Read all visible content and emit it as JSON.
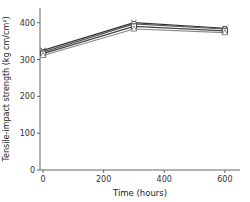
{
  "chart_data": {
    "type": "line",
    "xlabel": "Time (hours)",
    "ylabel": "Tensile-impact strength (kg cm/cm²)",
    "x": [
      0,
      300,
      600
    ],
    "series": [
      {
        "color": "#333333",
        "marker": "x",
        "line_style": "solid",
        "values": [
          325,
          400,
          385
        ]
      },
      {
        "color": "#555555",
        "marker": "circle",
        "line_style": "solid",
        "values": [
          320,
          397,
          383
        ]
      },
      {
        "color": "#444444",
        "marker": "square",
        "line_style": "solid",
        "values": [
          316,
          390,
          378
        ]
      },
      {
        "color": "#888888",
        "marker": "triangle",
        "line_style": "solid",
        "values": [
          311,
          383,
          373
        ]
      }
    ],
    "xlim": [
      -10,
      650
    ],
    "ylim": [
      0,
      440
    ],
    "xticks": [
      0,
      200,
      400,
      600
    ],
    "yticks": [
      0,
      100,
      200,
      300,
      400
    ],
    "grid": false
  }
}
